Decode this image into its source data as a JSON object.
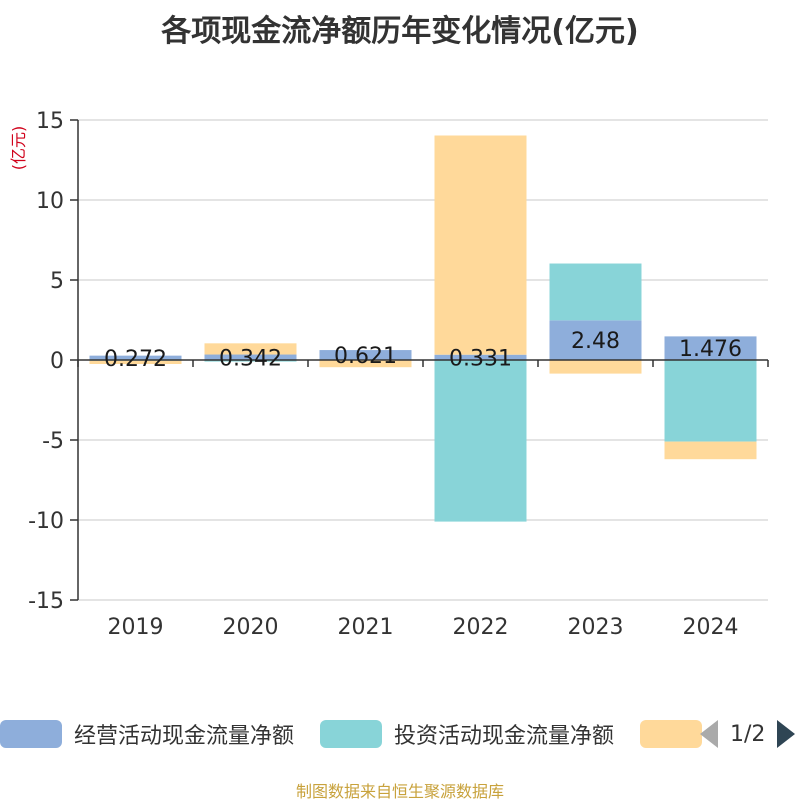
{
  "chart_data": {
    "type": "bar",
    "stacked": true,
    "title": "各项现金流净额历年变化情况(亿元)",
    "ylabel": "(亿元)",
    "categories": [
      "2019",
      "2020",
      "2021",
      "2022",
      "2023",
      "2024"
    ],
    "ylim": [
      -15,
      15
    ],
    "yticks": [
      -15,
      -10,
      -5,
      0,
      5,
      10,
      15
    ],
    "grid": true,
    "legend_position": "bottom",
    "series": [
      {
        "name": "经营活动现金流量净额",
        "color": "#8eaedb",
        "values": [
          0.272,
          0.342,
          0.621,
          0.331,
          2.48,
          1.476
        ],
        "labels": [
          "0.272",
          "0.342",
          "0.621",
          "0.331",
          "2.48",
          "1.476"
        ]
      },
      {
        "name": "投资活动现金流量净额",
        "color": "#88d4d8",
        "values": [
          -0.05,
          -0.1,
          0.0,
          -10.1,
          3.55,
          -5.1
        ]
      },
      {
        "color": "#ffd99a",
        "values": [
          -0.2,
          0.7,
          -0.45,
          13.7,
          -0.85,
          -1.1
        ]
      }
    ]
  },
  "legend": {
    "page": "1/2"
  },
  "footer": {
    "source": "制图数据来自恒生聚源数据库"
  }
}
